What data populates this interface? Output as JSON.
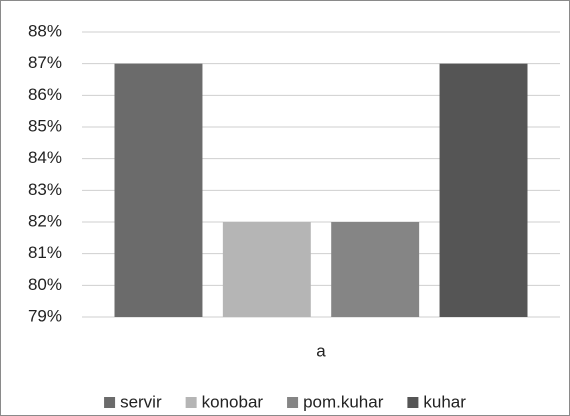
{
  "chart_data": {
    "type": "bar",
    "categories": [
      "a"
    ],
    "series": [
      {
        "name": "servir",
        "color": "#6b6b6b",
        "values": [
          87
        ]
      },
      {
        "name": "konobar",
        "color": "#b5b5b5",
        "values": [
          82
        ]
      },
      {
        "name": "pom.kuhar",
        "color": "#858585",
        "values": [
          82
        ]
      },
      {
        "name": "kuhar",
        "color": "#555555",
        "values": [
          87
        ]
      }
    ],
    "ylim": [
      79,
      88
    ],
    "yticks": [
      {
        "value": 79,
        "label": "79%"
      },
      {
        "value": 80,
        "label": "80%"
      },
      {
        "value": 81,
        "label": "81%"
      },
      {
        "value": 82,
        "label": "82%"
      },
      {
        "value": 83,
        "label": "83%"
      },
      {
        "value": 84,
        "label": "84%"
      },
      {
        "value": 85,
        "label": "85%"
      },
      {
        "value": 86,
        "label": "86%"
      },
      {
        "value": 87,
        "label": "87%"
      },
      {
        "value": 88,
        "label": "88%"
      }
    ],
    "grid": true,
    "legend": "bottom"
  }
}
